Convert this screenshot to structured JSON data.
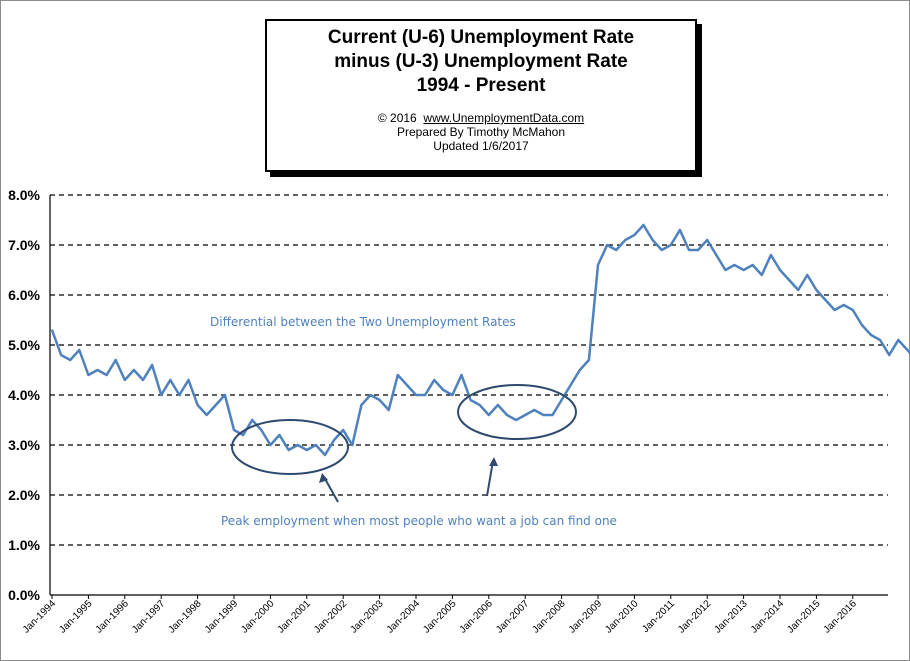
{
  "title_box": {
    "line1": "Current (U-6) Unemployment Rate",
    "line2": "minus (U-3) Unemployment Rate",
    "line3": "1994 - Present",
    "copyright": "© 2016",
    "website": "www.UnemploymentData.com",
    "prepared": "Prepared  By Timothy McMahon",
    "updated": "Updated  1/6/2017"
  },
  "colors": {
    "line": "#4f81bd",
    "grid": "#000000",
    "ellipse": "#2e4a6e",
    "annotation": "#4f81bd"
  },
  "annotations": {
    "differential": "Differential between the Two Unemployment Rates",
    "peak": "Peak employment when most people who want a job can find one"
  },
  "chart_data": {
    "type": "line",
    "title": "Current (U-6) Unemployment Rate minus (U-3) Unemployment Rate 1994 - Present",
    "xlabel": "",
    "ylabel": "",
    "ylim": [
      0,
      8
    ],
    "y_ticks": [
      "0.0%",
      "1.0%",
      "2.0%",
      "3.0%",
      "4.0%",
      "5.0%",
      "6.0%",
      "7.0%",
      "8.0%"
    ],
    "x_ticks": [
      "Jan-1994",
      "Jan-1995",
      "Jan-1996",
      "Jan-1997",
      "Jan-1998",
      "Jan-1999",
      "Jan-2000",
      "Jan-2001",
      "Jan-2002",
      "Jan-2003",
      "Jan-2004",
      "Jan-2005",
      "Jan-2006",
      "Jan-2007",
      "Jan-2008",
      "Jan-2009",
      "Jan-2010",
      "Jan-2011",
      "Jan-2012",
      "Jan-2013",
      "Jan-2014",
      "Jan-2015",
      "Jan-2016"
    ],
    "grid": "horizontal dashed",
    "legend": "none",
    "series": [
      {
        "x_start": "Jan-1994",
        "frequency": "quarterly",
        "values": [
          5.3,
          4.8,
          4.7,
          4.9,
          4.4,
          4.5,
          4.4,
          4.7,
          4.3,
          4.5,
          4.3,
          4.6,
          4.0,
          4.3,
          4.0,
          4.3,
          3.8,
          3.6,
          3.8,
          4.0,
          3.3,
          3.2,
          3.5,
          3.3,
          3.0,
          3.2,
          2.9,
          3.0,
          2.9,
          3.0,
          2.8,
          3.1,
          3.3,
          3.0,
          3.8,
          4.0,
          3.9,
          3.7,
          4.4,
          4.2,
          4.0,
          4.0,
          4.3,
          4.1,
          4.0,
          4.4,
          3.9,
          3.8,
          3.6,
          3.8,
          3.6,
          3.5,
          3.6,
          3.7,
          3.6,
          3.6,
          3.9,
          4.2,
          4.5,
          4.7,
          6.6,
          7.0,
          6.9,
          7.1,
          7.2,
          7.4,
          7.1,
          6.9,
          7.0,
          7.3,
          6.9,
          6.9,
          7.1,
          6.8,
          6.5,
          6.6,
          6.5,
          6.6,
          6.4,
          6.8,
          6.5,
          6.3,
          6.1,
          6.4,
          6.1,
          5.9,
          5.7,
          5.8,
          5.7,
          5.4,
          5.2,
          5.1,
          4.8,
          5.1,
          4.9,
          4.7
        ]
      }
    ]
  }
}
